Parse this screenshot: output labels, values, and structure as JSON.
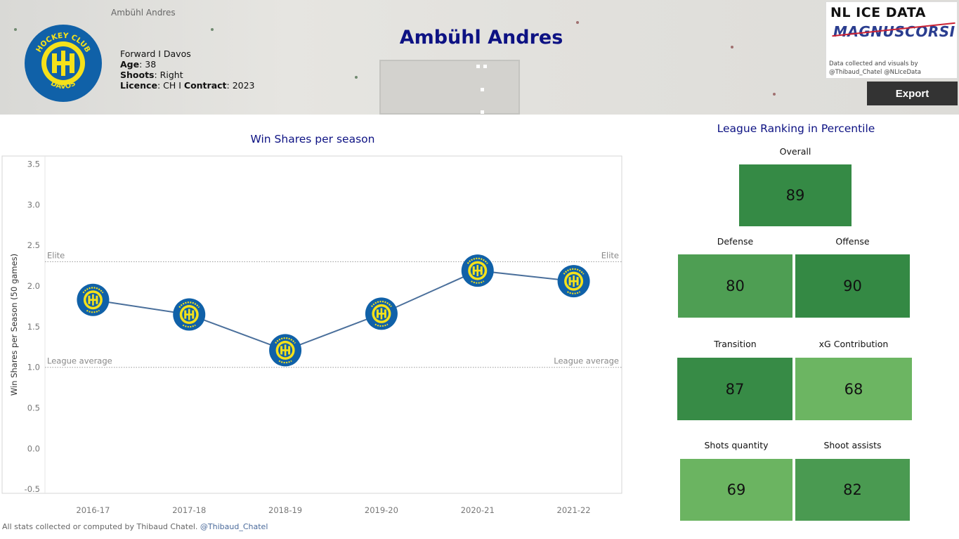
{
  "header": {
    "breadcrumb": "Ambühl Andres",
    "player_name": "Ambühl Andres",
    "position_team": "Forward I Davos",
    "age_label": "Age",
    "age_value": ": 38",
    "shoots_label": "Shoots",
    "shoots_value": ": Right",
    "licence_label": "Licence",
    "licence_value": ": CH I ",
    "contract_label": "Contract",
    "contract_value": ": 2023",
    "team_logo_text": {
      "top": "HOCKEY CLUB",
      "bottom": "DAVOS"
    }
  },
  "brand": {
    "title": "NL ICE DATA",
    "subtitle": "MAGNUSCORSI",
    "note_line1": "Data collected and visuals by",
    "note_line2": "@Thibaud_Chatel @NLIceData"
  },
  "toolbar": {
    "export_label": "Export"
  },
  "chart_data": {
    "type": "line",
    "title": "Win Shares per season",
    "ylabel": "Win Shares per Season (50 games)",
    "xlabel": "",
    "categories": [
      "2016-17",
      "2017-18",
      "2018-19",
      "2019-20",
      "2020-21",
      "2021-22"
    ],
    "values": [
      1.83,
      1.65,
      1.21,
      1.66,
      2.19,
      2.06
    ],
    "ylim": [
      -0.55,
      3.6
    ],
    "yticks": [
      "3.5",
      "3.0",
      "2.5",
      "2.0",
      "1.5",
      "1.0",
      "0.5",
      "0.0",
      "-0.5"
    ],
    "reference_lines": [
      {
        "label": "Elite",
        "value": 2.3
      },
      {
        "label": "League average",
        "value": 1.0
      }
    ],
    "marker": "team-logo",
    "line_color": "#4a6f9b",
    "grid": false
  },
  "ranking": {
    "title": "League Ranking in Percentile",
    "cells": [
      {
        "label": "Overall",
        "value": "89",
        "color": "#358a45"
      },
      {
        "label": "Defense",
        "value": "80",
        "color": "#4e9e53"
      },
      {
        "label": "Offense",
        "value": "90",
        "color": "#348944"
      },
      {
        "label": "Transition",
        "value": "87",
        "color": "#378b46"
      },
      {
        "label": "xG Contribution",
        "value": "68",
        "color": "#6cb562"
      },
      {
        "label": "Shots quantity",
        "value": "69",
        "color": "#6bb461"
      },
      {
        "label": "Shoot assists",
        "value": "82",
        "color": "#4a9a51"
      }
    ]
  },
  "footer": {
    "text": "All stats collected or computed by Thibaud Chatel.",
    "handle": "@Thibaud_Chatel"
  },
  "colors": {
    "accent": "#0d1283",
    "logo_blue": "#1061a8",
    "logo_yellow": "#f5e11a"
  }
}
